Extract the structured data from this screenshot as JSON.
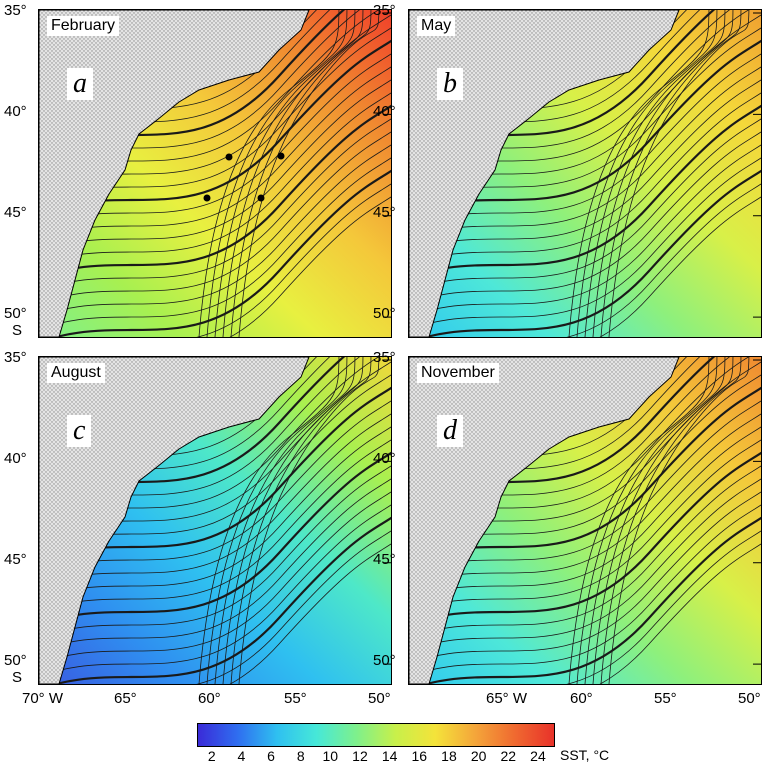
{
  "panels": [
    {
      "month": "February",
      "letter": "a"
    },
    {
      "month": "May",
      "letter": "b"
    },
    {
      "month": "August",
      "letter": "c"
    },
    {
      "month": "November",
      "letter": "d"
    }
  ],
  "axes": {
    "lat_labels": [
      "35°",
      "40°",
      "45°",
      "50°"
    ],
    "lat_hemisphere": "S",
    "lon_labels_left": [
      "70° W",
      "65°",
      "60°",
      "55°",
      "50°"
    ],
    "lon_labels_right": [
      "65° W",
      "60°",
      "55°",
      "50°"
    ]
  },
  "colorbar": {
    "ticks": [
      "2",
      "4",
      "6",
      "8",
      "10",
      "12",
      "14",
      "16",
      "18",
      "20",
      "22",
      "24"
    ],
    "title": "SST, °C",
    "range": [
      1,
      25
    ],
    "colors": [
      "#3a2bd8",
      "#2f6ef0",
      "#2fc0f0",
      "#46e8d8",
      "#7ef08c",
      "#c8f04a",
      "#f4e33a",
      "#f4a63a",
      "#f06a30",
      "#e8322a"
    ]
  },
  "map_style": {
    "land_color": "#d8d8d8",
    "contour_color": "#1a1a1a",
    "marker_color": "#000000"
  }
}
